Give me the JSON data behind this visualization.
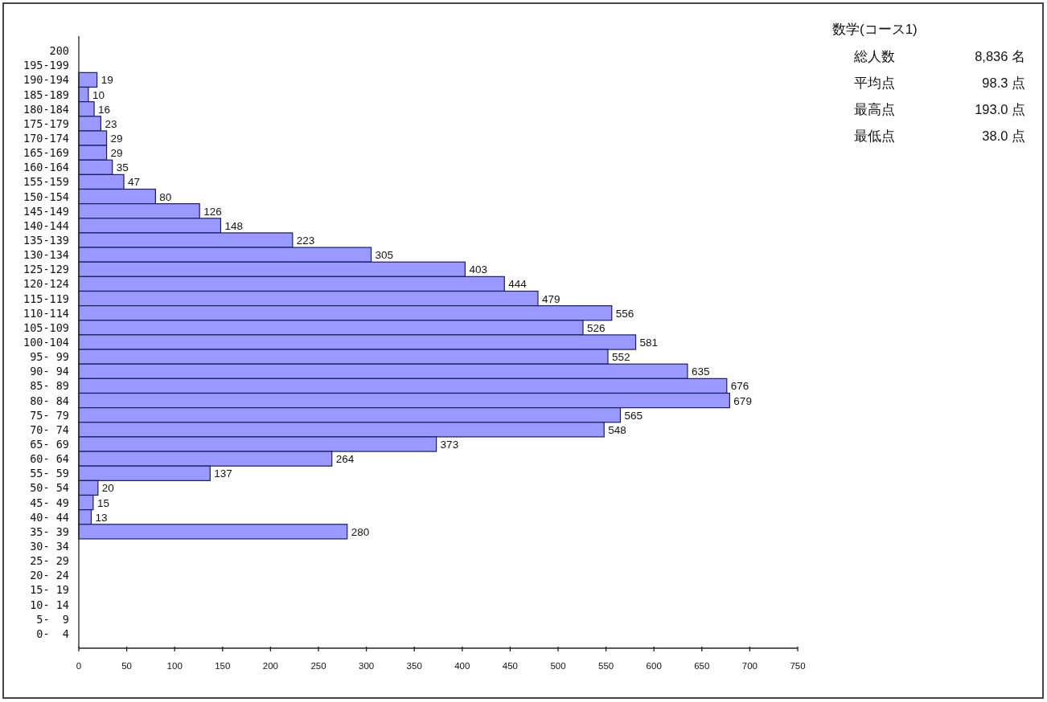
{
  "chart_data": {
    "type": "bar",
    "orientation": "horizontal",
    "title": "数学(コース1)",
    "categories": [
      "200",
      "195-199",
      "190-194",
      "185-189",
      "180-184",
      "175-179",
      "170-174",
      "165-169",
      "160-164",
      "155-159",
      "150-154",
      "145-149",
      "140-144",
      "135-139",
      "130-134",
      "125-129",
      "120-124",
      "115-119",
      "110-114",
      "105-109",
      "100-104",
      "95- 99",
      "90- 94",
      "85- 89",
      "80- 84",
      "75- 79",
      "70- 74",
      "65- 69",
      "60- 64",
      "55- 59",
      "50- 54",
      "45- 49",
      "40- 44",
      "35- 39",
      "30- 34",
      "25- 29",
      "20- 24",
      "15- 19",
      "10- 14",
      "5-  9",
      "0-  4"
    ],
    "values": [
      null,
      null,
      19,
      10,
      16,
      23,
      29,
      29,
      35,
      47,
      80,
      126,
      148,
      223,
      305,
      403,
      444,
      479,
      556,
      526,
      581,
      552,
      635,
      676,
      679,
      565,
      548,
      373,
      264,
      137,
      20,
      15,
      13,
      280,
      null,
      null,
      null,
      null,
      null,
      null,
      null
    ],
    "color": "#9999ff",
    "xlim": [
      0,
      750
    ],
    "xticks": [
      0,
      50,
      100,
      150,
      200,
      250,
      300,
      350,
      400,
      450,
      500,
      550,
      600,
      650,
      700,
      750
    ],
    "data_labels": true,
    "annotations": [
      "総人数",
      "8,836 名",
      "平均点",
      "98.3 点",
      "最高点",
      "193.0 点",
      "最低点",
      "38.0 点"
    ]
  }
}
